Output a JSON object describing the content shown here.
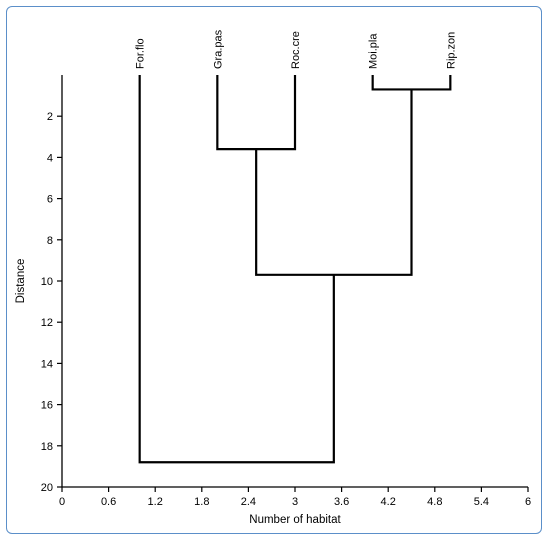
{
  "chart_data": {
    "type": "dendrogram",
    "title": "",
    "xlabel": "Number of habitat",
    "ylabel": "Distance",
    "xlim": [
      0,
      6
    ],
    "ylim": [
      20,
      0
    ],
    "x_ticks": [
      0,
      0.6,
      1.2,
      1.8,
      2.4,
      3,
      3.6,
      4.2,
      4.8,
      5.4,
      6
    ],
    "x_tick_labels": [
      "0",
      "0.6",
      "1.2",
      "1.8",
      "2.4",
      "3",
      "3.6",
      "4.2",
      "4.8",
      "5.4",
      "6"
    ],
    "y_ticks": [
      2,
      4,
      6,
      8,
      10,
      12,
      14,
      16,
      18,
      20
    ],
    "y_tick_labels": [
      "2",
      "4",
      "6",
      "8",
      "10",
      "12",
      "14",
      "16",
      "18",
      "20"
    ],
    "leaves": [
      {
        "label": "For.flo",
        "x": 1
      },
      {
        "label": "Gra.pas",
        "x": 2
      },
      {
        "label": "Roc.cre",
        "x": 3
      },
      {
        "label": "Moi.pla",
        "x": 4
      },
      {
        "label": "Rip.zon",
        "x": 5
      }
    ],
    "merges": [
      {
        "left_x": 4,
        "right_x": 5,
        "distance": 0.7,
        "center_x": 4.5,
        "left_top": 0,
        "right_top": 0
      },
      {
        "left_x": 2,
        "right_x": 3,
        "distance": 3.6,
        "center_x": 2.5,
        "left_top": 0,
        "right_top": 0
      },
      {
        "left_x": 2.5,
        "right_x": 4.5,
        "distance": 9.7,
        "center_x": 3.5,
        "left_top": 3.6,
        "right_top": 0.7
      },
      {
        "left_x": 1,
        "right_x": 3.5,
        "distance": 18.8,
        "center_x": 2.25,
        "left_top": 0,
        "right_top": 9.7
      }
    ],
    "line_color": "#000000",
    "frame_color": "#5b8fc9",
    "grid": false
  }
}
